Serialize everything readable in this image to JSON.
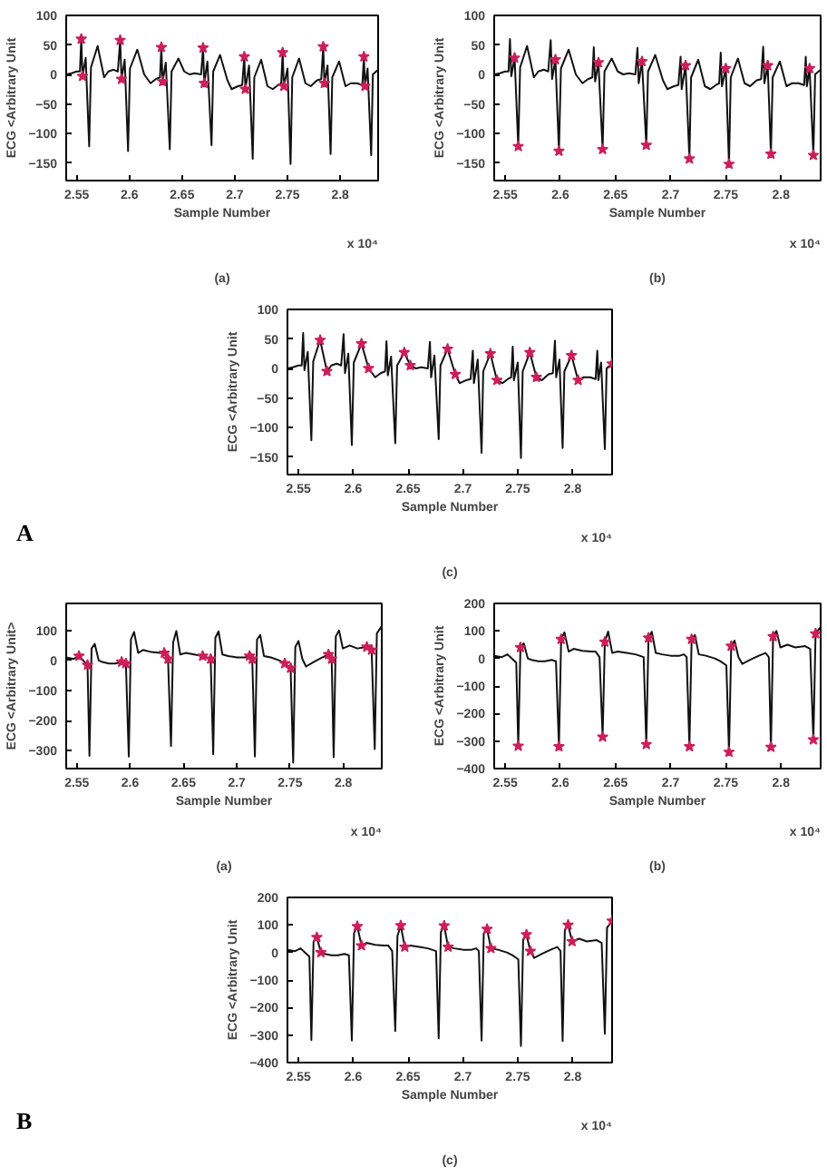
{
  "chart_data": [
    {
      "type": "line",
      "title": "(a)",
      "xlabel": "Sample Number",
      "ylabel": "ECG <Arbitrary Unit",
      "annotations": [
        "x 10⁴"
      ],
      "xlim": [
        2.54,
        2.836
      ],
      "ylim": [
        -180,
        100
      ],
      "xticks": [
        2.55,
        2.6,
        2.65,
        2.7,
        2.75,
        2.8
      ],
      "yticks": [
        -150,
        -100,
        -50,
        0,
        50,
        100
      ],
      "x": [
        2.54,
        2.545,
        2.55,
        2.553,
        2.5543,
        2.5555,
        2.5585,
        2.5618,
        2.5635,
        2.5698,
        2.576,
        2.58,
        2.585,
        2.589,
        2.5912,
        2.5925,
        2.5955,
        2.5987,
        2.6005,
        2.6075,
        2.614,
        2.62,
        2.625,
        2.629,
        2.6303,
        2.6315,
        2.6345,
        2.6383,
        2.64,
        2.6465,
        2.652,
        2.657,
        2.662,
        2.668,
        2.6699,
        2.671,
        2.674,
        2.6779,
        2.6795,
        2.686,
        2.693,
        2.697,
        2.703,
        2.707,
        2.709,
        2.71,
        2.7135,
        2.717,
        2.7185,
        2.725,
        2.731,
        2.736,
        2.741,
        2.744,
        2.7454,
        2.7465,
        2.75,
        2.7529,
        2.7545,
        2.761,
        2.767,
        2.772,
        2.778,
        2.782,
        2.7839,
        2.785,
        2.788,
        2.7909,
        2.7925,
        2.799,
        2.805,
        2.81,
        2.816,
        2.821,
        2.8225,
        2.8235,
        2.826,
        2.8294,
        2.831,
        2.836
      ],
      "series": [
        {
          "type": "line",
          "color": "#111111",
          "values": [
            0,
            2,
            5,
            5,
            60,
            -3,
            28,
            -122,
            12,
            48,
            -5,
            5,
            8,
            5,
            58,
            -8,
            25,
            -130,
            10,
            42,
            0,
            -15,
            -8,
            -5,
            46,
            -12,
            20,
            -127,
            5,
            27,
            5,
            0,
            2,
            0,
            45,
            -15,
            22,
            -120,
            5,
            33,
            -10,
            -25,
            -20,
            -18,
            30,
            -25,
            15,
            -143,
            -5,
            25,
            -20,
            -25,
            -18,
            -15,
            37,
            -20,
            10,
            -152,
            -5,
            27,
            -15,
            -20,
            -10,
            -8,
            47,
            -15,
            15,
            -135,
            -5,
            22,
            -20,
            -15,
            -15,
            -18,
            30,
            -20,
            10,
            -137,
            0,
            8
          ]
        },
        {
          "type": "scatter",
          "marker": "star",
          "color": "#cc1f5a",
          "x": [
            2.5543,
            2.5912,
            2.6303,
            2.6699,
            2.709,
            2.7454,
            2.7839,
            2.8225,
            2.5555,
            2.5925,
            2.6315,
            2.671,
            2.71,
            2.7465,
            2.785,
            2.8235
          ],
          "values": [
            60,
            58,
            46,
            45,
            30,
            37,
            47,
            30,
            -3,
            -8,
            -12,
            -15,
            -25,
            -20,
            -15,
            -20
          ]
        }
      ]
    },
    {
      "type": "line",
      "title": "(b)",
      "xlabel": "Sample Number",
      "ylabel": "ECG <Arbitrary Unit",
      "annotations": [
        "x 10⁴"
      ],
      "xlim": [
        2.54,
        2.836
      ],
      "ylim": [
        -180,
        100
      ],
      "xticks": [
        2.55,
        2.6,
        2.65,
        2.7,
        2.75,
        2.8
      ],
      "yticks": [
        -150,
        -100,
        -50,
        0,
        50,
        100
      ],
      "x": [
        2.54,
        2.545,
        2.55,
        2.553,
        2.5543,
        2.5555,
        2.5585,
        2.5618,
        2.5635,
        2.5698,
        2.576,
        2.58,
        2.585,
        2.589,
        2.5912,
        2.5925,
        2.5955,
        2.5987,
        2.6005,
        2.6075,
        2.614,
        2.62,
        2.625,
        2.629,
        2.6303,
        2.6315,
        2.6345,
        2.6383,
        2.64,
        2.6465,
        2.652,
        2.657,
        2.662,
        2.668,
        2.6699,
        2.671,
        2.674,
        2.6779,
        2.6795,
        2.686,
        2.693,
        2.697,
        2.703,
        2.707,
        2.709,
        2.71,
        2.7135,
        2.717,
        2.7185,
        2.725,
        2.731,
        2.736,
        2.741,
        2.744,
        2.7454,
        2.7465,
        2.75,
        2.7529,
        2.7545,
        2.761,
        2.767,
        2.772,
        2.778,
        2.782,
        2.7839,
        2.785,
        2.788,
        2.7909,
        2.7925,
        2.799,
        2.805,
        2.81,
        2.816,
        2.821,
        2.8225,
        2.8235,
        2.826,
        2.8294,
        2.831,
        2.836
      ],
      "series": [
        {
          "type": "line",
          "color": "#111111",
          "values": [
            0,
            2,
            5,
            5,
            60,
            -3,
            28,
            -122,
            12,
            48,
            -5,
            5,
            8,
            5,
            58,
            -8,
            25,
            -130,
            10,
            42,
            0,
            -15,
            -8,
            -5,
            46,
            -12,
            20,
            -127,
            5,
            27,
            5,
            0,
            2,
            0,
            45,
            -15,
            22,
            -120,
            5,
            33,
            -10,
            -25,
            -20,
            -18,
            30,
            -25,
            15,
            -143,
            -5,
            25,
            -20,
            -25,
            -18,
            -15,
            37,
            -20,
            10,
            -152,
            -5,
            27,
            -15,
            -20,
            -10,
            -8,
            47,
            -15,
            15,
            -135,
            -5,
            22,
            -20,
            -15,
            -15,
            -18,
            30,
            -20,
            10,
            -137,
            0,
            8
          ]
        },
        {
          "type": "scatter",
          "marker": "star",
          "color": "#cc1f5a",
          "x": [
            2.5618,
            2.5987,
            2.6383,
            2.6779,
            2.717,
            2.7529,
            2.7909,
            2.8294,
            2.5585,
            2.5955,
            2.6345,
            2.674,
            2.7135,
            2.75,
            2.788,
            2.826
          ],
          "values": [
            -122,
            -130,
            -127,
            -120,
            -143,
            -152,
            -135,
            -137,
            28,
            25,
            20,
            22,
            15,
            10,
            15,
            10
          ]
        }
      ]
    },
    {
      "type": "line",
      "title": "(c)",
      "xlabel": "Sample Number",
      "ylabel": "ECG <Arbitrary Unit",
      "annotations": [
        "x 10⁴",
        "A"
      ],
      "xlim": [
        2.54,
        2.836
      ],
      "ylim": [
        -180,
        100
      ],
      "xticks": [
        2.55,
        2.6,
        2.65,
        2.7,
        2.75,
        2.8
      ],
      "yticks": [
        -150,
        -100,
        -50,
        0,
        50,
        100
      ],
      "x": [
        2.54,
        2.545,
        2.55,
        2.553,
        2.5543,
        2.5555,
        2.5585,
        2.5618,
        2.5635,
        2.5698,
        2.576,
        2.58,
        2.585,
        2.589,
        2.5912,
        2.5925,
        2.5955,
        2.5987,
        2.6005,
        2.6075,
        2.614,
        2.62,
        2.625,
        2.629,
        2.6303,
        2.6315,
        2.6345,
        2.6383,
        2.64,
        2.6465,
        2.652,
        2.657,
        2.662,
        2.668,
        2.6699,
        2.671,
        2.674,
        2.6779,
        2.6795,
        2.686,
        2.693,
        2.697,
        2.703,
        2.707,
        2.709,
        2.71,
        2.7135,
        2.717,
        2.7185,
        2.725,
        2.731,
        2.736,
        2.741,
        2.744,
        2.7454,
        2.7465,
        2.75,
        2.7529,
        2.7545,
        2.761,
        2.767,
        2.772,
        2.778,
        2.782,
        2.7839,
        2.785,
        2.788,
        2.7909,
        2.7925,
        2.799,
        2.805,
        2.81,
        2.816,
        2.821,
        2.8225,
        2.8235,
        2.826,
        2.8294,
        2.831,
        2.836
      ],
      "series": [
        {
          "type": "line",
          "color": "#111111",
          "values": [
            0,
            2,
            5,
            5,
            60,
            -3,
            28,
            -122,
            12,
            48,
            -5,
            5,
            8,
            5,
            58,
            -8,
            25,
            -130,
            10,
            42,
            0,
            -15,
            -8,
            -5,
            46,
            -12,
            20,
            -127,
            5,
            27,
            5,
            0,
            2,
            0,
            45,
            -15,
            22,
            -120,
            5,
            33,
            -10,
            -25,
            -20,
            -18,
            30,
            -25,
            15,
            -143,
            -5,
            25,
            -20,
            -25,
            -18,
            -15,
            37,
            -20,
            10,
            -152,
            -5,
            27,
            -15,
            -20,
            -10,
            -8,
            47,
            -15,
            15,
            -135,
            -5,
            22,
            -20,
            -15,
            -15,
            -18,
            30,
            -20,
            10,
            -137,
            0,
            8
          ]
        },
        {
          "type": "scatter",
          "marker": "star",
          "color": "#cc1f5a",
          "x": [
            2.5698,
            2.6075,
            2.6465,
            2.686,
            2.725,
            2.761,
            2.799,
            2.576,
            2.614,
            2.652,
            2.693,
            2.731,
            2.767,
            2.805,
            2.836
          ],
          "values": [
            48,
            42,
            27,
            33,
            25,
            27,
            22,
            -5,
            0,
            5,
            -10,
            -20,
            -15,
            -20,
            8
          ]
        }
      ]
    },
    {
      "type": "line",
      "title": "(a)",
      "xlabel": "Sample Number",
      "ylabel": "ECG <Arbitrary Unit>",
      "annotations": [
        "x 10⁴"
      ],
      "xlim": [
        2.54,
        2.836
      ],
      "ylim": [
        -360,
        190
      ],
      "xticks": [
        2.55,
        2.6,
        2.65,
        2.7,
        2.75,
        2.8
      ],
      "yticks": [
        -300,
        -200,
        -100,
        0,
        100
      ],
      "x": [
        2.54,
        2.547,
        2.552,
        2.556,
        2.56,
        2.5618,
        2.5638,
        2.5668,
        2.5705,
        2.574,
        2.58,
        2.586,
        2.592,
        2.596,
        2.5987,
        2.6007,
        2.6037,
        2.6075,
        2.612,
        2.62,
        2.628,
        2.632,
        2.6355,
        2.6383,
        2.6403,
        2.6433,
        2.647,
        2.652,
        2.66,
        2.668,
        2.6755,
        2.6779,
        2.6799,
        2.6829,
        2.6865,
        2.692,
        2.7,
        2.708,
        2.712,
        2.7145,
        2.717,
        2.719,
        2.722,
        2.7255,
        2.732,
        2.74,
        2.745,
        2.7505,
        2.7529,
        2.7549,
        2.7579,
        2.7615,
        2.765,
        2.772,
        2.78,
        2.786,
        2.789,
        2.7909,
        2.7929,
        2.7959,
        2.7995,
        2.806,
        2.813,
        2.822,
        2.8265,
        2.8294,
        2.8314,
        2.836
      ],
      "series": [
        {
          "type": "line",
          "color": "#111111",
          "values": [
            10,
            5,
            15,
            0,
            -15,
            -318,
            40,
            55,
            0,
            -5,
            -10,
            -10,
            -5,
            -10,
            -320,
            70,
            95,
            25,
            35,
            28,
            25,
            25,
            5,
            -285,
            60,
            98,
            20,
            25,
            20,
            15,
            5,
            -312,
            75,
            97,
            20,
            15,
            10,
            10,
            15,
            5,
            -320,
            70,
            85,
            15,
            10,
            0,
            -10,
            -25,
            -340,
            45,
            65,
            5,
            -20,
            -5,
            10,
            20,
            5,
            -322,
            80,
            100,
            40,
            50,
            40,
            45,
            35,
            -295,
            90,
            115
          ]
        },
        {
          "type": "scatter",
          "marker": "star",
          "color": "#cc1f5a",
          "x": [
            2.552,
            2.56,
            2.592,
            2.596,
            2.632,
            2.6355,
            2.668,
            2.6755,
            2.712,
            2.7145,
            2.745,
            2.7505,
            2.786,
            2.789,
            2.822,
            2.8265
          ],
          "values": [
            15,
            -15,
            -5,
            -10,
            25,
            5,
            15,
            5,
            15,
            5,
            -10,
            -25,
            20,
            5,
            45,
            35
          ]
        }
      ]
    },
    {
      "type": "line",
      "title": "(b)",
      "xlabel": "Sample Number",
      "ylabel": "ECG <Arbitrary Unit",
      "annotations": [
        "x 10⁴"
      ],
      "xlim": [
        2.54,
        2.836
      ],
      "ylim": [
        -400,
        200
      ],
      "xticks": [
        2.55,
        2.6,
        2.65,
        2.7,
        2.75,
        2.8
      ],
      "yticks": [
        -400,
        -300,
        -200,
        -100,
        0,
        100,
        200
      ],
      "x": [
        2.54,
        2.547,
        2.552,
        2.556,
        2.56,
        2.5618,
        2.5638,
        2.5668,
        2.5705,
        2.574,
        2.58,
        2.586,
        2.592,
        2.596,
        2.5987,
        2.6007,
        2.6037,
        2.6075,
        2.612,
        2.62,
        2.628,
        2.632,
        2.6355,
        2.6383,
        2.6403,
        2.6433,
        2.647,
        2.652,
        2.66,
        2.668,
        2.6755,
        2.6779,
        2.6799,
        2.6829,
        2.6865,
        2.692,
        2.7,
        2.708,
        2.712,
        2.7145,
        2.717,
        2.719,
        2.722,
        2.7255,
        2.732,
        2.74,
        2.745,
        2.7505,
        2.7529,
        2.7549,
        2.7579,
        2.7615,
        2.765,
        2.772,
        2.78,
        2.786,
        2.789,
        2.7909,
        2.7929,
        2.7959,
        2.7995,
        2.806,
        2.813,
        2.822,
        2.8265,
        2.8294,
        2.8314,
        2.836
      ],
      "series": [
        {
          "type": "line",
          "color": "#111111",
          "values": [
            10,
            5,
            15,
            0,
            -15,
            -318,
            40,
            55,
            0,
            -5,
            -10,
            -10,
            -5,
            -10,
            -320,
            70,
            95,
            25,
            35,
            28,
            25,
            25,
            5,
            -285,
            60,
            98,
            20,
            25,
            20,
            15,
            5,
            -312,
            75,
            97,
            20,
            15,
            10,
            10,
            15,
            5,
            -320,
            70,
            85,
            15,
            10,
            0,
            -10,
            -25,
            -340,
            45,
            65,
            5,
            -20,
            -5,
            10,
            20,
            5,
            -322,
            80,
            100,
            40,
            50,
            40,
            45,
            35,
            -295,
            90,
            115
          ]
        },
        {
          "type": "scatter",
          "marker": "star",
          "color": "#cc1f5a",
          "x": [
            2.5618,
            2.5987,
            2.6383,
            2.6779,
            2.717,
            2.7529,
            2.7909,
            2.8294,
            2.5638,
            2.6007,
            2.6403,
            2.6799,
            2.719,
            2.7549,
            2.7929,
            2.8314
          ],
          "values": [
            -318,
            -320,
            -285,
            -312,
            -320,
            -340,
            -322,
            -295,
            40,
            70,
            60,
            75,
            70,
            45,
            80,
            90
          ]
        }
      ]
    },
    {
      "type": "line",
      "title": "(c)",
      "xlabel": "Sample Number",
      "ylabel": "ECG <Arbitrary Unit",
      "annotations": [
        "x 10⁴",
        "B"
      ],
      "xlim": [
        2.54,
        2.836
      ],
      "ylim": [
        -400,
        200
      ],
      "xticks": [
        2.55,
        2.6,
        2.65,
        2.7,
        2.75,
        2.8
      ],
      "yticks": [
        -400,
        -300,
        -200,
        -100,
        0,
        100,
        200
      ],
      "x": [
        2.54,
        2.547,
        2.552,
        2.556,
        2.56,
        2.5618,
        2.5638,
        2.5668,
        2.5705,
        2.574,
        2.58,
        2.586,
        2.592,
        2.596,
        2.5987,
        2.6007,
        2.6037,
        2.6075,
        2.612,
        2.62,
        2.628,
        2.632,
        2.6355,
        2.6383,
        2.6403,
        2.6433,
        2.647,
        2.652,
        2.66,
        2.668,
        2.6755,
        2.6779,
        2.6799,
        2.6829,
        2.6865,
        2.692,
        2.7,
        2.708,
        2.712,
        2.7145,
        2.717,
        2.719,
        2.722,
        2.7255,
        2.732,
        2.74,
        2.745,
        2.7505,
        2.7529,
        2.7549,
        2.7579,
        2.7615,
        2.765,
        2.772,
        2.78,
        2.786,
        2.789,
        2.7909,
        2.7929,
        2.7959,
        2.7995,
        2.806,
        2.813,
        2.822,
        2.8265,
        2.8294,
        2.8314,
        2.836
      ],
      "series": [
        {
          "type": "line",
          "color": "#111111",
          "values": [
            10,
            5,
            15,
            0,
            -15,
            -318,
            40,
            55,
            0,
            -5,
            -10,
            -10,
            -5,
            -10,
            -320,
            70,
            95,
            25,
            35,
            28,
            25,
            25,
            5,
            -285,
            60,
            98,
            20,
            25,
            20,
            15,
            5,
            -312,
            75,
            97,
            20,
            15,
            10,
            10,
            15,
            5,
            -320,
            70,
            85,
            15,
            10,
            0,
            -10,
            -25,
            -340,
            45,
            65,
            5,
            -20,
            -5,
            10,
            20,
            5,
            -322,
            80,
            100,
            40,
            50,
            40,
            45,
            35,
            -295,
            90,
            115
          ]
        },
        {
          "type": "scatter",
          "marker": "star",
          "color": "#cc1f5a",
          "x": [
            2.5668,
            2.6037,
            2.6433,
            2.6829,
            2.722,
            2.7579,
            2.7959,
            2.836,
            2.5705,
            2.6075,
            2.647,
            2.6865,
            2.7255,
            2.7615,
            2.7995
          ],
          "values": [
            55,
            95,
            98,
            97,
            85,
            65,
            100,
            115,
            0,
            25,
            20,
            20,
            15,
            5,
            40
          ]
        }
      ]
    }
  ]
}
